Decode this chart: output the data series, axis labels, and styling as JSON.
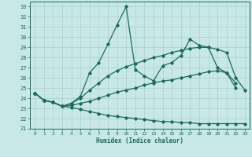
{
  "xlabel": "Humidex (Indice chaleur)",
  "background_color": "#c8e8e8",
  "grid_color": "#a8d0d0",
  "line_color": "#1a6b5a",
  "xlim": [
    -0.5,
    23.5
  ],
  "ylim": [
    21,
    33.5
  ],
  "yticks": [
    21,
    22,
    23,
    24,
    25,
    26,
    27,
    28,
    29,
    30,
    31,
    32,
    33
  ],
  "xticks": [
    0,
    1,
    2,
    3,
    4,
    5,
    6,
    7,
    8,
    9,
    10,
    11,
    12,
    13,
    14,
    15,
    16,
    17,
    18,
    19,
    20,
    21,
    22,
    23
  ],
  "series": [
    {
      "x": [
        0,
        1,
        2,
        3,
        4,
        5,
        6,
        7,
        8,
        9,
        10,
        11,
        12,
        13,
        14,
        15,
        16,
        17,
        18,
        19,
        20,
        21,
        22
      ],
      "y": [
        24.5,
        23.8,
        23.6,
        23.2,
        23.5,
        24.2,
        26.5,
        27.5,
        29.3,
        31.2,
        33.0,
        26.8,
        26.2,
        25.7,
        27.2,
        27.5,
        28.2,
        29.8,
        29.2,
        29.0,
        27.0,
        26.5,
        25.0
      ]
    },
    {
      "x": [
        0,
        1,
        2,
        3,
        4,
        5,
        6,
        7,
        8,
        9,
        10,
        11,
        12,
        13,
        14,
        15,
        16,
        17,
        18,
        19,
        20,
        21,
        22,
        23
      ],
      "y": [
        24.5,
        23.8,
        23.6,
        23.2,
        23.5,
        24.0,
        24.8,
        25.5,
        26.2,
        26.7,
        27.1,
        27.4,
        27.7,
        28.0,
        28.2,
        28.5,
        28.7,
        28.9,
        29.0,
        29.0,
        28.8,
        28.5,
        26.0,
        24.8
      ]
    },
    {
      "x": [
        0,
        1,
        2,
        3,
        4,
        5,
        6,
        7,
        8,
        9,
        10,
        11,
        12,
        13,
        14,
        15,
        16,
        17,
        18,
        19,
        20,
        21,
        22
      ],
      "y": [
        24.5,
        23.8,
        23.6,
        23.2,
        23.3,
        23.5,
        23.7,
        24.0,
        24.3,
        24.6,
        24.8,
        25.0,
        25.3,
        25.5,
        25.7,
        25.8,
        26.0,
        26.2,
        26.4,
        26.6,
        26.7,
        26.5,
        25.5
      ]
    },
    {
      "x": [
        0,
        1,
        2,
        3,
        4,
        5,
        6,
        7,
        8,
        9,
        10,
        11,
        12,
        13,
        14,
        15,
        16,
        17,
        18,
        19,
        20,
        21,
        22,
        23
      ],
      "y": [
        24.5,
        23.8,
        23.6,
        23.2,
        23.1,
        22.9,
        22.7,
        22.5,
        22.3,
        22.2,
        22.1,
        22.0,
        21.9,
        21.8,
        21.7,
        21.7,
        21.6,
        21.6,
        21.5,
        21.5,
        21.5,
        21.5,
        21.5,
        21.5
      ]
    }
  ]
}
